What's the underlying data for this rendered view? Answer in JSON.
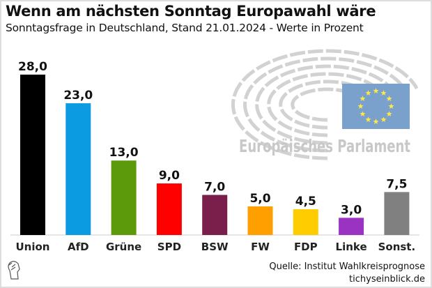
{
  "header": {
    "title": "Wenn am nächsten Sonntag Europawahl wäre",
    "subtitle": "Sonntagsfrage in Deutschland, Stand 21.01.2024 - Werte in Prozent"
  },
  "logo": {
    "text": "Europäisches Parlament",
    "flag_color": "#7aa0cc",
    "star_color": "#ffe84a"
  },
  "footer": {
    "source": "Quelle: Institut Wahlkreisprognose",
    "site": "tichyseinblick.de"
  },
  "chart_data": {
    "type": "bar",
    "title": "Wenn am nächsten Sonntag Europawahl wäre",
    "subtitle": "Sonntagsfrage in Deutschland, Stand 21.01.2024 - Werte in Prozent",
    "categories": [
      "Union",
      "AfD",
      "Grüne",
      "SPD",
      "BSW",
      "FW",
      "FDP",
      "Linke",
      "Sonst."
    ],
    "values": [
      28.0,
      23.0,
      13.0,
      9.0,
      7.0,
      5.0,
      4.5,
      3.0,
      7.5
    ],
    "labels": [
      "28,0",
      "23,0",
      "13,0",
      "9,0",
      "7,0",
      "5,0",
      "4,5",
      "3,0",
      "7,5"
    ],
    "colors": [
      "#000000",
      "#0a9be0",
      "#5c9a0b",
      "#ff0000",
      "#7a1f4c",
      "#ffa000",
      "#ffcc00",
      "#9a32c2",
      "#808080"
    ],
    "ylim": [
      0,
      28
    ],
    "grid": false
  }
}
